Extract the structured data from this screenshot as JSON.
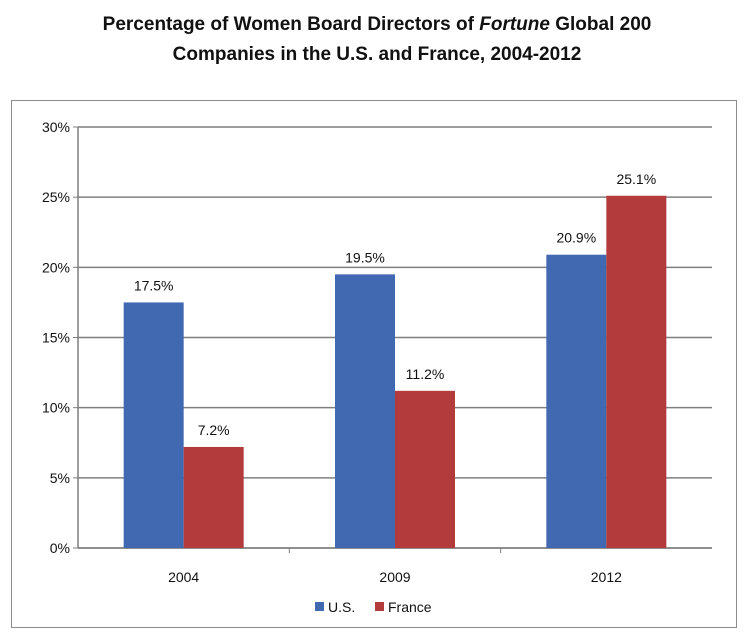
{
  "title": {
    "line1_pre": "Percentage of Women Board Directors of ",
    "line1_italic": "Fortune",
    "line1_post": " Global 200",
    "line2": "Companies in the U.S. and France, 2004-2012"
  },
  "chart_data": {
    "type": "bar",
    "title": "Percentage of Women Board Directors of Fortune Global 200 Companies in the U.S. and France, 2004-2012",
    "categories": [
      "2004",
      "2009",
      "2012"
    ],
    "series": [
      {
        "name": "U.S.",
        "color": "#4169B1",
        "values": [
          17.5,
          19.5,
          20.9
        ],
        "labels": [
          "17.5%",
          "19.5%",
          "20.9%"
        ]
      },
      {
        "name": "France",
        "color": "#B33B3B",
        "values": [
          7.2,
          11.2,
          25.1
        ],
        "labels": [
          "7.2%",
          "11.2%",
          "25.1%"
        ]
      }
    ],
    "ylim": [
      0,
      30
    ],
    "y_ticks": [
      0,
      5,
      10,
      15,
      20,
      25,
      30
    ],
    "y_tick_labels": [
      "0%",
      "5%",
      "10%",
      "15%",
      "20%",
      "25%",
      "30%"
    ],
    "xlabel": "",
    "ylabel": "",
    "grid": true,
    "legend_position": "bottom"
  }
}
